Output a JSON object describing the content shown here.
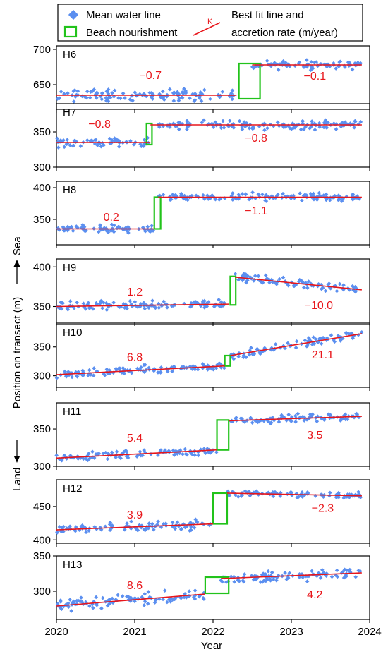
{
  "chart_data": {
    "type": "scatter",
    "xlabel": "Year",
    "ylabel": "Position on transect (m)",
    "ylabel_land": "Land",
    "ylabel_sea": "Sea",
    "xlim": [
      2020,
      2024
    ],
    "xticks": [
      2020,
      2021,
      2022,
      2023,
      2024
    ],
    "colors": {
      "points": "#5b8ff0",
      "fit": "#e8161b",
      "nourishment": "#22c31b"
    },
    "legend": {
      "mean_water_line": "Mean water line",
      "beach_nourishment": "Beach nourishment",
      "fit_line_1": "Best fit line and",
      "fit_line_2": "accretion rate (m/year)",
      "fit_marker": "K"
    },
    "panels": [
      {
        "name": "H6",
        "ylim": [
          615,
          705
        ],
        "yticks": [
          650,
          700
        ],
        "segments": [
          {
            "x0": 2020.0,
            "x1": 2022.3,
            "y0": 635,
            "y1": 635,
            "noise": 7,
            "rate_label": "−0.7",
            "rate_x": 2021.2,
            "rate_y": 658
          },
          {
            "x0": 2022.5,
            "x1": 2023.9,
            "y0": 678,
            "y1": 678,
            "noise": 5,
            "rate_label": "−0.1",
            "rate_x": 2023.3,
            "rate_y": 657
          }
        ],
        "nourishment": [
          {
            "x0": 2022.33,
            "x1": 2022.6,
            "y0": 630,
            "y1": 680
          }
        ]
      },
      {
        "name": "H7",
        "ylim": [
          300,
          390
        ],
        "yticks": [
          300,
          350
        ],
        "segments": [
          {
            "x0": 2020.0,
            "x1": 2021.2,
            "y0": 335,
            "y1": 335,
            "noise": 6,
            "rate_label": "−0.8",
            "rate_x": 2020.55,
            "rate_y": 356
          },
          {
            "x0": 2021.2,
            "x1": 2023.9,
            "y0": 360,
            "y1": 360,
            "noise": 5,
            "rate_label": "−0.8",
            "rate_x": 2022.55,
            "rate_y": 336
          }
        ],
        "nourishment": [
          {
            "x0": 2021.15,
            "x1": 2021.22,
            "y0": 332,
            "y1": 362
          }
        ]
      },
      {
        "name": "H8",
        "ylim": [
          310,
          410
        ],
        "yticks": [
          350,
          400
        ],
        "segments": [
          {
            "x0": 2020.0,
            "x1": 2021.25,
            "y0": 335,
            "y1": 335,
            "noise": 5,
            "rate_label": "0.2",
            "rate_x": 2020.7,
            "rate_y": 348
          },
          {
            "x0": 2021.3,
            "x1": 2023.9,
            "y0": 385,
            "y1": 385,
            "noise": 5,
            "rate_label": "−1.1",
            "rate_x": 2022.55,
            "rate_y": 358
          }
        ],
        "nourishment": [
          {
            "x0": 2021.25,
            "x1": 2021.33,
            "y0": 335,
            "y1": 385
          }
        ]
      },
      {
        "name": "H9",
        "ylim": [
          330,
          410
        ],
        "yticks": [
          350,
          400
        ],
        "segments": [
          {
            "x0": 2020.0,
            "x1": 2022.2,
            "y0": 350,
            "y1": 353,
            "noise": 5,
            "rate_label": "1.2",
            "rate_x": 2021.0,
            "rate_y": 364
          },
          {
            "x0": 2022.28,
            "x1": 2023.9,
            "y0": 387,
            "y1": 371,
            "noise": 5,
            "rate_label": "−10.0",
            "rate_x": 2023.35,
            "rate_y": 347
          }
        ],
        "nourishment": [
          {
            "x0": 2022.22,
            "x1": 2022.29,
            "y0": 352,
            "y1": 388
          }
        ]
      },
      {
        "name": "H10",
        "ylim": [
          280,
          390
        ],
        "yticks": [
          300,
          350
        ],
        "segments": [
          {
            "x0": 2020.0,
            "x1": 2022.15,
            "y0": 302,
            "y1": 317,
            "noise": 6,
            "rate_label": "6.8",
            "rate_x": 2021.0,
            "rate_y": 326
          },
          {
            "x0": 2022.22,
            "x1": 2023.9,
            "y0": 335,
            "y1": 373,
            "noise": 6,
            "rate_label": "21.1",
            "rate_x": 2023.4,
            "rate_y": 330
          }
        ],
        "nourishment": [
          {
            "x0": 2022.15,
            "x1": 2022.22,
            "y0": 317,
            "y1": 335
          }
        ]
      },
      {
        "name": "H11",
        "ylim": [
          300,
          385
        ],
        "yticks": [
          300,
          350
        ],
        "segments": [
          {
            "x0": 2020.0,
            "x1": 2022.05,
            "y0": 311,
            "y1": 322,
            "noise": 5,
            "rate_label": "5.4",
            "rate_x": 2021.0,
            "rate_y": 333
          },
          {
            "x0": 2022.2,
            "x1": 2023.9,
            "y0": 361,
            "y1": 367,
            "noise": 5,
            "rate_label": "3.5",
            "rate_x": 2023.3,
            "rate_y": 337
          }
        ],
        "nourishment": [
          {
            "x0": 2022.05,
            "x1": 2022.2,
            "y0": 322,
            "y1": 362
          }
        ]
      },
      {
        "name": "H12",
        "ylim": [
          395,
          490
        ],
        "yticks": [
          400,
          450
        ],
        "segments": [
          {
            "x0": 2020.0,
            "x1": 2022.0,
            "y0": 415,
            "y1": 424,
            "noise": 6,
            "rate_label": "3.9",
            "rate_x": 2021.0,
            "rate_y": 432
          },
          {
            "x0": 2022.18,
            "x1": 2023.9,
            "y0": 470,
            "y1": 466,
            "noise": 4,
            "rate_label": "−2.3",
            "rate_x": 2023.4,
            "rate_y": 442
          }
        ],
        "nourishment": [
          {
            "x0": 2022.0,
            "x1": 2022.18,
            "y0": 424,
            "y1": 470
          }
        ]
      },
      {
        "name": "H13",
        "ylim": [
          260,
          350
        ],
        "yticks": [
          300,
          350
        ],
        "segments": [
          {
            "x0": 2020.0,
            "x1": 2021.9,
            "y0": 279,
            "y1": 296,
            "noise": 7,
            "rate_label": "8.6",
            "rate_x": 2021.0,
            "rate_y": 303
          },
          {
            "x0": 2022.1,
            "x1": 2023.9,
            "y0": 318,
            "y1": 326,
            "noise": 6,
            "rate_label": "4.2",
            "rate_x": 2023.3,
            "rate_y": 290
          }
        ],
        "nourishment": [
          {
            "x0": 2021.9,
            "x1": 2022.2,
            "y0": 297,
            "y1": 320
          }
        ]
      }
    ]
  }
}
